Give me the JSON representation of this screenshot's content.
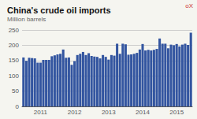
{
  "chart_data": {
    "type": "bar",
    "title": "China's crude oil imports",
    "subtitle": "Million barrels",
    "annotations": [
      "oX"
    ],
    "categories": [
      null,
      null,
      null,
      null,
      null,
      null,
      "2011",
      null,
      null,
      null,
      null,
      null,
      null,
      null,
      null,
      null,
      null,
      null,
      "2012",
      null,
      null,
      null,
      null,
      null,
      null,
      null,
      null,
      null,
      null,
      null,
      "2013",
      null,
      null,
      null,
      null,
      null,
      null,
      null,
      null,
      null,
      null,
      null,
      "2014",
      null,
      null,
      null,
      null,
      null,
      null,
      null,
      null,
      null,
      null,
      null,
      "2015",
      null,
      null,
      null,
      null,
      null
    ],
    "values": [
      160,
      149,
      159,
      158,
      157,
      143,
      143,
      152,
      152,
      152,
      164,
      167,
      170,
      172,
      186,
      159,
      160,
      136,
      148,
      168,
      172,
      178,
      168,
      174,
      165,
      163,
      162,
      157,
      168,
      162,
      153,
      168,
      166,
      205,
      172,
      205,
      203,
      169,
      170,
      172,
      175,
      186,
      204,
      183,
      185,
      183,
      185,
      188,
      222,
      205,
      205,
      190,
      202,
      200,
      204,
      196,
      202,
      205,
      201,
      241
    ],
    "color": "#3355a0",
    "ylim": [
      0,
      250
    ],
    "yticks": [
      0,
      50,
      100,
      150,
      200,
      250
    ],
    "grid": true
  }
}
